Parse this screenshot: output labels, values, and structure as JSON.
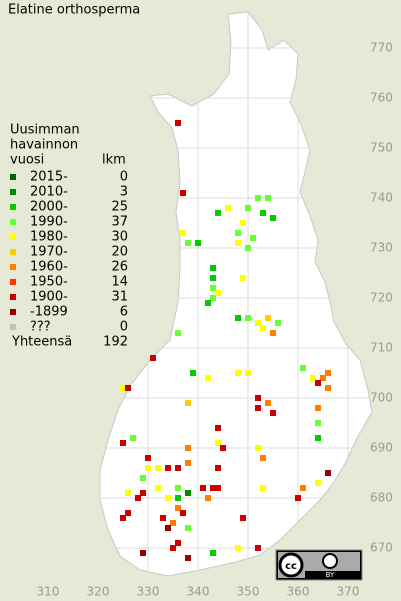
{
  "title": "Elatine orthosperma",
  "legend": {
    "heading": [
      "Uusimman",
      "havainnon",
      "vuosi"
    ],
    "count_heading": "lkm",
    "classes": [
      {
        "label": "2015-",
        "color": "#006400",
        "count": 0
      },
      {
        "label": "2010-",
        "color": "#008c00",
        "count": 3
      },
      {
        "label": "2000-",
        "color": "#00cc00",
        "count": 25
      },
      {
        "label": "1990-",
        "color": "#66ff33",
        "count": 37
      },
      {
        "label": "1980-",
        "color": "#ffff00",
        "count": 30
      },
      {
        "label": "1970-",
        "color": "#ffcc00",
        "count": 20
      },
      {
        "label": "1960-",
        "color": "#ff8000",
        "count": 26
      },
      {
        "label": "1950-",
        "color": "#ff3300",
        "count": 14
      },
      {
        "label": "1900-",
        "color": "#cc0000",
        "count": 31
      },
      {
        "label": "-1899",
        "color": "#990000",
        "count": 6
      },
      {
        "label": "???",
        "color": "#c0c0c0",
        "count": 0
      }
    ],
    "total_label": "Yhteensä",
    "total": 192
  },
  "y_ticks": [
    770,
    760,
    750,
    740,
    730,
    720,
    710,
    700,
    690,
    680,
    670
  ],
  "x_ticks": [
    310,
    320,
    330,
    340,
    350,
    360,
    370
  ],
  "squares": [
    [
      336,
      755,
      8
    ],
    [
      337,
      741,
      8
    ],
    [
      344,
      737,
      2
    ],
    [
      346,
      738,
      4
    ],
    [
      350,
      738,
      3
    ],
    [
      352,
      740,
      3
    ],
    [
      353,
      737,
      2
    ],
    [
      354,
      740,
      3
    ],
    [
      355,
      736,
      2
    ],
    [
      349,
      735,
      4
    ],
    [
      348,
      733,
      3
    ],
    [
      348,
      731,
      4
    ],
    [
      351,
      732,
      3
    ],
    [
      350,
      730,
      3
    ],
    [
      337,
      733,
      4
    ],
    [
      338,
      731,
      3
    ],
    [
      340,
      731,
      2
    ],
    [
      343,
      726,
      2
    ],
    [
      343,
      724,
      2
    ],
    [
      343,
      722,
      3
    ],
    [
      343,
      720,
      3
    ],
    [
      342,
      719,
      2
    ],
    [
      344,
      721,
      4
    ],
    [
      349,
      724,
      4
    ],
    [
      348,
      716,
      2
    ],
    [
      350,
      716,
      3
    ],
    [
      352,
      715,
      4
    ],
    [
      353,
      714,
      4
    ],
    [
      354,
      716,
      5
    ],
    [
      356,
      715,
      3
    ],
    [
      355,
      713,
      6
    ],
    [
      336,
      713,
      3
    ],
    [
      331,
      708,
      8
    ],
    [
      339,
      705,
      2
    ],
    [
      342,
      704,
      4
    ],
    [
      348,
      705,
      4
    ],
    [
      350,
      705,
      4
    ],
    [
      361,
      706,
      3
    ],
    [
      363,
      704,
      4
    ],
    [
      365,
      704,
      6
    ],
    [
      366,
      702,
      6
    ],
    [
      364,
      703,
      8
    ],
    [
      366,
      705,
      6
    ],
    [
      325,
      702,
      4
    ],
    [
      326,
      702,
      8
    ],
    [
      338,
      699,
      5
    ],
    [
      352,
      700,
      8
    ],
    [
      354,
      699,
      6
    ],
    [
      352,
      698,
      8
    ],
    [
      355,
      697,
      8
    ],
    [
      364,
      698,
      6
    ],
    [
      364,
      692,
      2
    ],
    [
      364,
      695,
      3
    ],
    [
      327,
      692,
      3
    ],
    [
      325,
      691,
      8
    ],
    [
      344,
      694,
      8
    ],
    [
      344,
      691,
      4
    ],
    [
      345,
      690,
      8
    ],
    [
      338,
      690,
      6
    ],
    [
      352,
      690,
      4
    ],
    [
      353,
      688,
      6
    ],
    [
      330,
      688,
      8
    ],
    [
      330,
      686,
      4
    ],
    [
      332,
      686,
      4
    ],
    [
      334,
      686,
      8
    ],
    [
      336,
      686,
      8
    ],
    [
      338,
      687,
      6
    ],
    [
      344,
      686,
      8
    ],
    [
      329,
      684,
      3
    ],
    [
      332,
      682,
      4
    ],
    [
      336,
      682,
      3
    ],
    [
      336,
      680,
      2
    ],
    [
      338,
      681,
      1
    ],
    [
      341,
      682,
      8
    ],
    [
      343,
      682,
      8
    ],
    [
      344,
      682,
      8
    ],
    [
      342,
      680,
      6
    ],
    [
      326,
      681,
      4
    ],
    [
      328,
      680,
      8
    ],
    [
      329,
      681,
      8
    ],
    [
      334,
      680,
      4
    ],
    [
      336,
      678,
      6
    ],
    [
      337,
      677,
      8
    ],
    [
      335,
      675,
      6
    ],
    [
      334,
      674,
      9
    ],
    [
      333,
      676,
      8
    ],
    [
      325,
      676,
      8
    ],
    [
      326,
      677,
      8
    ],
    [
      338,
      674,
      3
    ],
    [
      349,
      676,
      8
    ],
    [
      353,
      682,
      4
    ],
    [
      360,
      680,
      8
    ],
    [
      361,
      682,
      6
    ],
    [
      364,
      683,
      4
    ],
    [
      366,
      685,
      9
    ],
    [
      348,
      670,
      4
    ],
    [
      343,
      669,
      2
    ],
    [
      335,
      670,
      8
    ],
    [
      336,
      671,
      8
    ],
    [
      338,
      668,
      9
    ],
    [
      329,
      669,
      9
    ],
    [
      352,
      670,
      8
    ]
  ],
  "license": "BY"
}
